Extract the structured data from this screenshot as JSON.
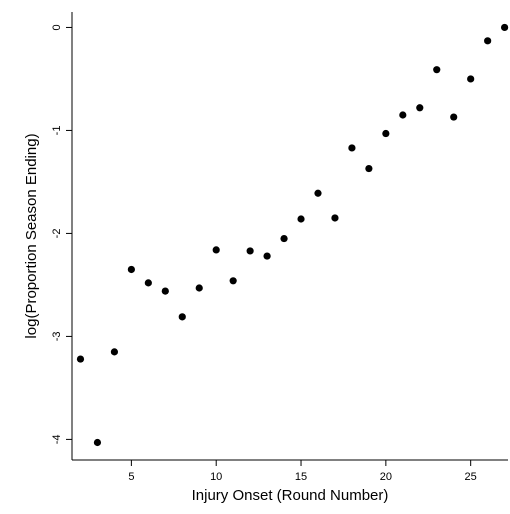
{
  "chart_data": {
    "type": "scatter",
    "title": "",
    "xlabel": "Injury Onset (Round Number)",
    "ylabel": "log(Proportion Season Ending)",
    "xlim": [
      1.5,
      27.2
    ],
    "ylim": [
      -4.2,
      0.15
    ],
    "xticks": [
      5,
      10,
      15,
      20,
      25
    ],
    "yticks": [
      0,
      -1,
      -2,
      -3,
      -4
    ],
    "grid": false,
    "legend": "none",
    "marker_color": "#000000",
    "points": [
      {
        "x": 2,
        "y": -3.22
      },
      {
        "x": 3,
        "y": -4.03
      },
      {
        "x": 4,
        "y": -3.15
      },
      {
        "x": 5,
        "y": -2.35
      },
      {
        "x": 6,
        "y": -2.48
      },
      {
        "x": 7,
        "y": -2.56
      },
      {
        "x": 8,
        "y": -2.81
      },
      {
        "x": 9,
        "y": -2.53
      },
      {
        "x": 10,
        "y": -2.16
      },
      {
        "x": 11,
        "y": -2.46
      },
      {
        "x": 12,
        "y": -2.17
      },
      {
        "x": 13,
        "y": -2.22
      },
      {
        "x": 14,
        "y": -2.05
      },
      {
        "x": 15,
        "y": -1.86
      },
      {
        "x": 16,
        "y": -1.61
      },
      {
        "x": 17,
        "y": -1.85
      },
      {
        "x": 18,
        "y": -1.17
      },
      {
        "x": 19,
        "y": -1.37
      },
      {
        "x": 20,
        "y": -1.03
      },
      {
        "x": 21,
        "y": -0.85
      },
      {
        "x": 22,
        "y": -0.78
      },
      {
        "x": 23,
        "y": -0.41
      },
      {
        "x": 24,
        "y": -0.87
      },
      {
        "x": 25,
        "y": -0.5
      },
      {
        "x": 26,
        "y": -0.13
      },
      {
        "x": 27,
        "y": 0.0
      }
    ]
  }
}
